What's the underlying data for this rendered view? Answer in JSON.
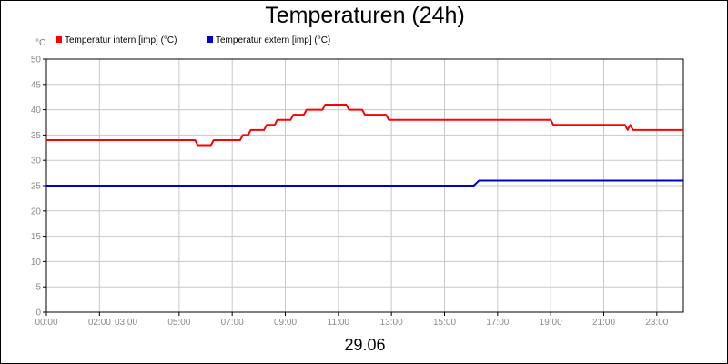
{
  "chart_data": {
    "type": "line",
    "title": "Temperaturen (24h)",
    "date_label": "29.06",
    "y_unit": "°C",
    "ylim": [
      0,
      50
    ],
    "y_ticks": [
      0,
      5,
      10,
      15,
      20,
      25,
      30,
      35,
      40,
      45,
      50
    ],
    "x_range_hours": [
      0,
      24
    ],
    "x_ticks": [
      {
        "h": 0,
        "label": "00:00"
      },
      {
        "h": 2,
        "label": "02:00"
      },
      {
        "h": 3,
        "label": "03:00"
      },
      {
        "h": 5,
        "label": "05:00"
      },
      {
        "h": 7,
        "label": "07:00"
      },
      {
        "h": 9,
        "label": "09:00"
      },
      {
        "h": 11,
        "label": "11:00"
      },
      {
        "h": 13,
        "label": "13:00"
      },
      {
        "h": 15,
        "label": "15:00"
      },
      {
        "h": 17,
        "label": "17:00"
      },
      {
        "h": 19,
        "label": "19:00"
      },
      {
        "h": 21,
        "label": "21:00"
      },
      {
        "h": 23,
        "label": "23:00"
      }
    ],
    "grid": true,
    "legend_position": "top-left",
    "series": [
      {
        "name": "Temperatur intern [imp] (°C)",
        "color": "#ff0000",
        "x": [
          "00:00",
          "05:36",
          "05:42",
          "06:12",
          "06:18",
          "07:18",
          "07:24",
          "07:36",
          "07:42",
          "08:12",
          "08:18",
          "08:36",
          "08:42",
          "09:12",
          "09:18",
          "09:42",
          "09:48",
          "10:24",
          "10:30",
          "11:18",
          "11:24",
          "11:54",
          "12:00",
          "12:48",
          "12:54",
          "19:00",
          "19:06",
          "21:48",
          "21:54",
          "22:00",
          "22:06",
          "24:00"
        ],
        "y": [
          34,
          34,
          33,
          33,
          34,
          34,
          35,
          35,
          36,
          36,
          37,
          37,
          38,
          38,
          39,
          39,
          40,
          40,
          41,
          41,
          40,
          40,
          39,
          39,
          38,
          38,
          37,
          37,
          36,
          37,
          36,
          36
        ]
      },
      {
        "name": "Temperatur extern [imp] (°C)",
        "color": "#0000cc",
        "x": [
          "00:00",
          "16:06",
          "16:18",
          "24:00"
        ],
        "y": [
          25,
          25,
          26,
          26
        ]
      }
    ]
  }
}
